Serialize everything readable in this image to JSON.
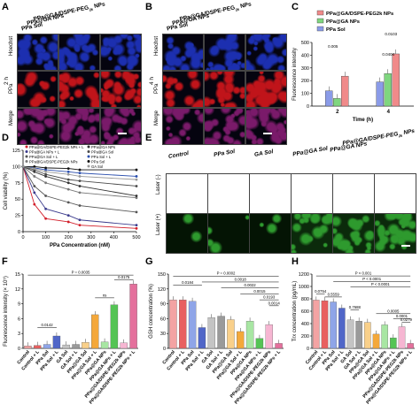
{
  "panel_labels": {
    "A": "A",
    "B": "B",
    "C": "C",
    "D": "D",
    "E": "E",
    "F": "F",
    "G": "G",
    "H": "H"
  },
  "micrographs_A": {
    "groups": [
      "PPa@GA/DSPE-PEG",
      "PPa@GA NPs",
      "PPa Sol"
    ],
    "group_sub": "2k",
    "group_suffix": " NPs",
    "rows": [
      "Hoechst",
      "PPa",
      "Merge"
    ],
    "time": "2 h",
    "colors": {
      "hoechst": "#1c2fb0",
      "ppa": "#c0141a",
      "merge": "#7a1a6a"
    }
  },
  "micrographs_B": {
    "groups": [
      "PPa@GA/DSPE-PEG",
      "PPa@GA NPs",
      "PPa Sol"
    ],
    "group_sub": "2k",
    "group_suffix": " NPs",
    "rows": [
      "Hoechst",
      "PPa",
      "Merge"
    ],
    "time": "4 h"
  },
  "micrographs_E": {
    "columns": [
      "Control",
      "PPa Sol",
      "GA Sol",
      "PPa@GA Sol",
      "PPa@GA NPs",
      "PPa@GA/DSPE-PEG"
    ],
    "col6_sub": "2k",
    "col6_suffix": " NPs",
    "rows": [
      "Laser (-)",
      "Laser (+)"
    ],
    "color": "#2e9a2e"
  },
  "chart_data": [
    {
      "panel": "C",
      "type": "bar",
      "categories": [
        "2",
        "4"
      ],
      "xlabel": "Time (h)",
      "ylabel": "Fluorescence intensity",
      "ylim": [
        0,
        500
      ],
      "yticks": [
        0,
        100,
        200,
        300,
        400,
        500
      ],
      "series": [
        {
          "name": "PPa@GA/DSPE-PEG2k NPs",
          "color": "#f08a8a",
          "values": [
            235,
            410
          ]
        },
        {
          "name": "PPa@GA NPs",
          "color": "#7fd67f",
          "values": [
            60,
            255
          ]
        },
        {
          "name": "PPa Sol",
          "color": "#8a9be8",
          "values": [
            120,
            190
          ]
        }
      ],
      "annotations": [
        "0.005",
        "0.0404",
        "0.0103"
      ]
    },
    {
      "panel": "D",
      "type": "line",
      "xlabel": "PPa Concentration (nM)",
      "ylabel": "Cell viability (%)",
      "xlim": [
        0,
        500
      ],
      "ylim": [
        0,
        125
      ],
      "xticks": [
        0,
        100,
        200,
        300,
        400,
        500
      ],
      "yticks": [
        0,
        25,
        50,
        75,
        100,
        125
      ],
      "x": [
        0,
        50,
        100,
        200,
        250,
        500
      ],
      "series": [
        {
          "name": "PPa@GA/DSPE-PEG2k NPs + L",
          "color": "#d21f2b",
          "values": [
            100,
            42,
            20,
            15,
            10,
            5
          ]
        },
        {
          "name": "PPa@GA NPs + L",
          "color": "#3a3a8c",
          "values": [
            100,
            60,
            35,
            25,
            18,
            10
          ]
        },
        {
          "name": "PPa@GA Sol + L",
          "color": "#555555",
          "values": [
            100,
            70,
            55,
            45,
            40,
            30
          ]
        },
        {
          "name": "PPa@GA/DSPE-PEG2k NPs",
          "color": "#777777",
          "values": [
            100,
            85,
            75,
            65,
            60,
            52
          ]
        },
        {
          "name": "PPa@GA NPs",
          "color": "#333333",
          "values": [
            100,
            92,
            85,
            75,
            70,
            55
          ]
        },
        {
          "name": "PPa@GA Sol",
          "color": "#4a4a4a",
          "values": [
            100,
            95,
            88,
            80,
            78,
            70
          ]
        },
        {
          "name": "PPa Sol + L",
          "color": "#2b4fae",
          "values": [
            100,
            98,
            95,
            92,
            90,
            85
          ]
        },
        {
          "name": "PPa Sol",
          "color": "#111111",
          "values": [
            100,
            100,
            98,
            97,
            95,
            95
          ]
        },
        {
          "name": "GA Sol",
          "color": "#999999",
          "values": [
            100,
            97,
            92,
            88,
            85,
            80
          ]
        }
      ]
    },
    {
      "panel": "F",
      "type": "bar",
      "categories": [
        "Control",
        "Control + L",
        "PPa Sol",
        "PPa Sol + L",
        "GA Sol",
        "GA Sol + L",
        "PPa@GA Sol",
        "PPa@GA Sol + L",
        "PPa@GA NPs",
        "PPa@GA NPs + L",
        "PPa@GA/DSPE-PEG2k NPs",
        "PPa@GA/DSPE-PEG2k NPs + L"
      ],
      "ylabel": "Fluorescence intensity (× 10⁵)",
      "ylim": [
        0,
        15
      ],
      "yticks": [
        0,
        3,
        6,
        9,
        12,
        15
      ],
      "values": [
        0.5,
        0.6,
        0.8,
        2.5,
        0.7,
        0.8,
        1.2,
        6.8,
        1.3,
        8.8,
        1.1,
        13.0
      ],
      "colors": [
        "#f3a3a3",
        "#e86060",
        "#8fa5e8",
        "#5066c8",
        "#c4c4c4",
        "#9a9a9a",
        "#f9d08a",
        "#f4a83a",
        "#a8e6a3",
        "#55c455",
        "#f6b6d2",
        "#e4709c"
      ],
      "annotations": [
        "P = 0.0035",
        "0.0175",
        "ns",
        "0.0142"
      ]
    },
    {
      "panel": "G",
      "type": "bar",
      "categories": [
        "Control",
        "Control + L",
        "PPa Sol",
        "PPa Sol + L",
        "GA Sol",
        "GA Sol + L",
        "PPa@GA Sol",
        "PPa@GA Sol + L",
        "PPa@GA NPs",
        "PPa@GA NPs + L",
        "PPa@GA/DSPE-PEG2k NPs",
        "PPa@GA/DSPE-PEG2k NPs + L"
      ],
      "ylabel": "GSH concentration (%)",
      "ylim": [
        0,
        150
      ],
      "yticks": [
        0,
        30,
        60,
        90,
        120,
        150
      ],
      "values": [
        98,
        98,
        95,
        42,
        62,
        65,
        58,
        34,
        55,
        20,
        48,
        10
      ],
      "colors": [
        "#f3a3a3",
        "#e86060",
        "#8fa5e8",
        "#5066c8",
        "#c4c4c4",
        "#9a9a9a",
        "#f9d08a",
        "#f4a83a",
        "#a8e6a3",
        "#55c455",
        "#f6b6d2",
        "#e4709c"
      ],
      "annotations": [
        "P = 0.0002",
        "0.0184",
        "0.0018",
        "0.0022",
        "0.0015",
        "0.0193",
        "0.0014"
      ]
    },
    {
      "panel": "H",
      "type": "bar",
      "categories": [
        "Control",
        "Control + L",
        "PPa Sol",
        "PPa Sol + L",
        "GA Sol",
        "GA Sol + L",
        "PPa@GA Sol",
        "PPa@GA Sol + L",
        "PPa@GA NPs",
        "PPa@GA NPs + L",
        "PPa@GA/DSPE-PEG2k NPs",
        "PPa@GA/DSPE-PEG2k NPs + L"
      ],
      "ylabel": "Trx concentration (pg/mL)",
      "ylim": [
        0,
        1200
      ],
      "yticks": [
        0,
        200,
        400,
        600,
        800,
        1000,
        1200
      ],
      "values": [
        780,
        770,
        750,
        650,
        460,
        440,
        420,
        230,
        380,
        170,
        350,
        80
      ],
      "colors": [
        "#f3a3a3",
        "#e86060",
        "#8fa5e8",
        "#5066c8",
        "#c4c4c4",
        "#9a9a9a",
        "#f9d08a",
        "#f4a83a",
        "#a8e6a3",
        "#55c455",
        "#f6b6d2",
        "#e4709c"
      ],
      "annotations": [
        "P < 0.001",
        "P < 0.0001",
        "P < 0.0001",
        "0.0754",
        "0.5559",
        "0.7688",
        "0.0005",
        "0.0001",
        "0.0279"
      ]
    }
  ]
}
